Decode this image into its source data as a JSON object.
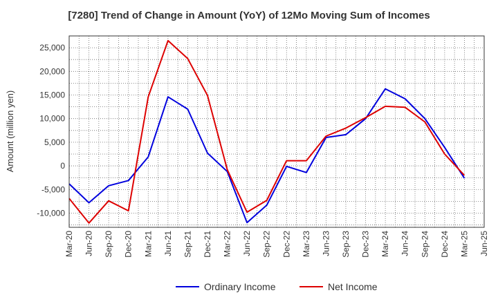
{
  "chart_data": {
    "type": "line",
    "title": "[7280]  Trend of Change in Amount (YoY) of 12Mo Moving Sum of Incomes",
    "xlabel": "",
    "ylabel": "Amount (million yen)",
    "ylim": [
      -13000,
      27500
    ],
    "yticks": [
      -10000,
      -5000,
      0,
      5000,
      10000,
      15000,
      20000,
      25000
    ],
    "ytick_labels": [
      "-10,000",
      "-5,000",
      "0",
      "5,000",
      "10,000",
      "15,000",
      "20,000",
      "25,000"
    ],
    "categories": [
      "Mar-20",
      "Jun-20",
      "Sep-20",
      "Dec-20",
      "Mar-21",
      "Jun-21",
      "Sep-21",
      "Dec-21",
      "Mar-22",
      "Jun-22",
      "Sep-22",
      "Dec-22",
      "Mar-23",
      "Jun-23",
      "Sep-23",
      "Dec-23",
      "Mar-24",
      "Jun-24",
      "Sep-24",
      "Dec-24",
      "Mar-25",
      "Jun-25"
    ],
    "grid": true,
    "legend_position": "bottom",
    "series": [
      {
        "name": "Ordinary Income",
        "color": "#0000dd",
        "values": [
          -3800,
          -7800,
          -4200,
          -3100,
          1900,
          14600,
          12000,
          2700,
          -1200,
          -12000,
          -8300,
          -100,
          -1400,
          6000,
          6600,
          10000,
          16300,
          14200,
          10000,
          3900,
          -2600,
          null
        ]
      },
      {
        "name": "Net Income",
        "color": "#dd0000",
        "values": [
          -6900,
          -12100,
          -7400,
          -9500,
          14600,
          26500,
          22700,
          14900,
          -800,
          -9800,
          -7300,
          1100,
          1100,
          6300,
          8000,
          10200,
          12600,
          12400,
          9300,
          2500,
          -2000,
          null
        ]
      }
    ]
  }
}
